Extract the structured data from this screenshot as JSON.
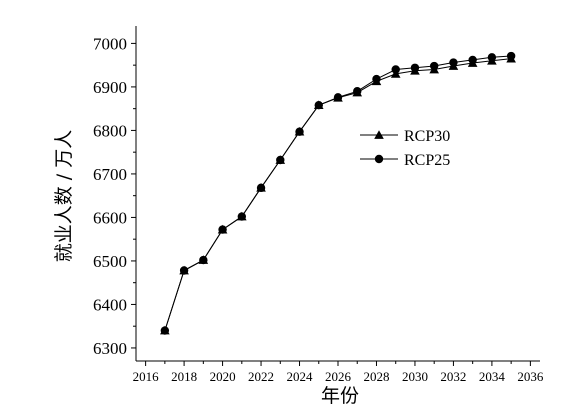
{
  "chart_data": {
    "type": "line",
    "title": "",
    "xlabel": "年份",
    "ylabel": "就业人数 / 万人",
    "xlim": [
      2015.5,
      2036.5
    ],
    "ylim": [
      6270,
      7040
    ],
    "x_ticks": [
      2016,
      2018,
      2020,
      2022,
      2024,
      2026,
      2028,
      2030,
      2032,
      2034,
      2036
    ],
    "x_minor_step": 1,
    "y_ticks": [
      6300,
      6400,
      6500,
      6600,
      6700,
      6800,
      6900,
      7000
    ],
    "grid": false,
    "legend_position": "right-middle",
    "x": [
      2017,
      2018,
      2019,
      2020,
      2021,
      2022,
      2023,
      2024,
      2025,
      2026,
      2027,
      2028,
      2029,
      2030,
      2031,
      2032,
      2033,
      2034,
      2035
    ],
    "series": [
      {
        "name": "RCP30",
        "marker": "triangle",
        "values": [
          6340,
          6478,
          6502,
          6572,
          6602,
          6668,
          6732,
          6797,
          6858,
          6875,
          6887,
          6913,
          6930,
          6937,
          6940,
          6948,
          6955,
          6960,
          6965
        ]
      },
      {
        "name": "RCP25",
        "marker": "circle",
        "values": [
          6340,
          6478,
          6502,
          6572,
          6602,
          6668,
          6732,
          6797,
          6858,
          6876,
          6890,
          6918,
          6940,
          6944,
          6948,
          6956,
          6962,
          6968,
          6971
        ]
      }
    ]
  }
}
